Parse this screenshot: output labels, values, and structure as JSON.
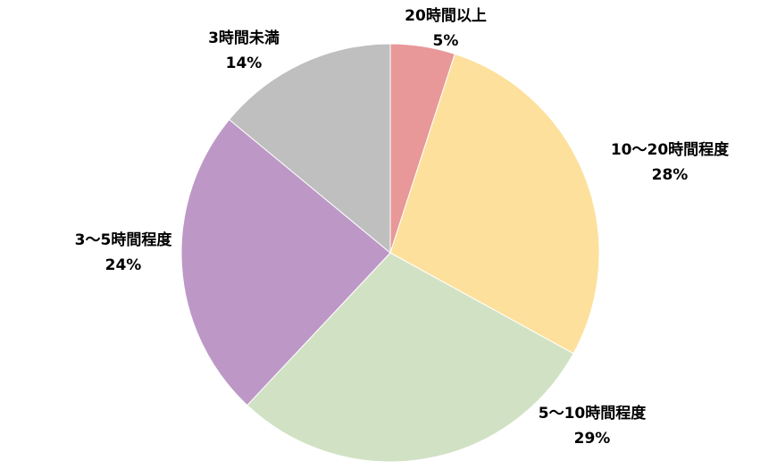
{
  "chart_data": {
    "type": "pie",
    "start_angle_deg": 0,
    "direction": "clockwise",
    "slices": [
      {
        "label": "20時間以上",
        "value": 5,
        "value_label": "5%",
        "color": "#e89898"
      },
      {
        "label": "10～20時間程度",
        "value": 28,
        "value_label": "28%",
        "color": "#fde09b"
      },
      {
        "label": "5～10時間程度",
        "value": 29,
        "value_label": "29%",
        "color": "#d1e2c4"
      },
      {
        "label": "3～5時間程度",
        "value": 24,
        "value_label": "24%",
        "color": "#bd98c7"
      },
      {
        "label": "3時間未満",
        "value": 14,
        "value_label": "14%",
        "color": "#bfbfbf"
      }
    ]
  }
}
